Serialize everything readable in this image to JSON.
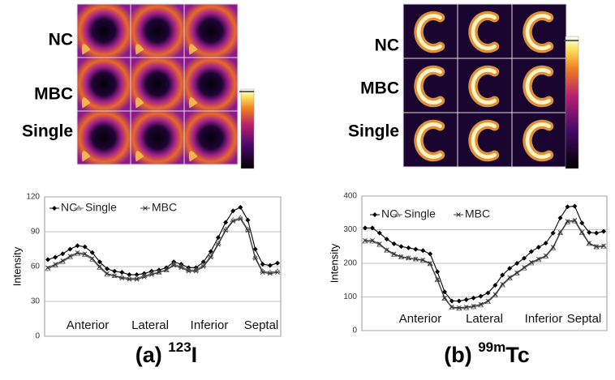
{
  "panels": [
    {
      "row_labels": [
        "NC",
        "MBC",
        "Single"
      ],
      "caption": {
        "prefix": "(a) ",
        "superscript": "123",
        "symbol": "I"
      }
    },
    {
      "row_labels": [
        "NC",
        "MBC",
        "Single"
      ],
      "caption": {
        "prefix": "(b) ",
        "superscript": "99m",
        "symbol": "Tc"
      }
    }
  ],
  "chart_data": [
    {
      "type": "line",
      "y_label": "Intensity",
      "ylim": [
        0,
        120
      ],
      "yticks": [
        0,
        30,
        60,
        90,
        120
      ],
      "grid": true,
      "annotations": [
        "Anterior",
        "Lateral",
        "Inferior",
        "Septal"
      ],
      "series": [
        {
          "name": "NC",
          "color": "#000000",
          "marker": "diamond",
          "values": [
            66,
            68,
            71,
            75,
            78,
            77,
            72,
            64,
            58,
            56,
            55,
            53,
            53,
            54,
            56,
            57,
            59,
            64,
            62,
            59,
            59,
            64,
            73,
            85,
            98,
            108,
            111,
            100,
            75,
            62,
            61,
            63
          ]
        },
        {
          "name": "Single",
          "color": "#666666",
          "marker": "triangle",
          "values": [
            58,
            61,
            64,
            68,
            71,
            70,
            66,
            59,
            53,
            52,
            51,
            50,
            50,
            52,
            54,
            55,
            57,
            62,
            60,
            57,
            57,
            61,
            69,
            80,
            92,
            100,
            102,
            92,
            68,
            56,
            55,
            56
          ]
        },
        {
          "name": "MBC",
          "color": "#333333",
          "marker": "cross",
          "values": [
            59,
            62,
            65,
            69,
            72,
            71,
            67,
            60,
            54,
            52,
            50,
            49,
            49,
            51,
            53,
            55,
            57,
            61,
            59,
            56,
            56,
            60,
            68,
            79,
            91,
            99,
            101,
            91,
            67,
            55,
            54,
            55
          ]
        }
      ]
    },
    {
      "type": "line",
      "y_label": "Intensity",
      "ylim": [
        0,
        400
      ],
      "yticks": [
        0,
        100,
        200,
        300,
        400
      ],
      "grid": true,
      "annotations": [
        "Anterior",
        "Lateral",
        "Inferior",
        "Septal"
      ],
      "series": [
        {
          "name": "NC",
          "color": "#000000",
          "marker": "diamond",
          "values": [
            305,
            305,
            290,
            272,
            258,
            250,
            246,
            242,
            238,
            228,
            175,
            115,
            88,
            88,
            92,
            97,
            102,
            112,
            135,
            165,
            185,
            200,
            215,
            235,
            248,
            260,
            290,
            335,
            368,
            370,
            320,
            292,
            290,
            295
          ]
        },
        {
          "name": "Single",
          "color": "#666666",
          "marker": "triangle",
          "values": [
            265,
            265,
            255,
            238,
            225,
            218,
            215,
            212,
            208,
            198,
            150,
            95,
            68,
            65,
            67,
            70,
            75,
            85,
            105,
            135,
            155,
            170,
            185,
            200,
            210,
            220,
            245,
            290,
            322,
            325,
            290,
            258,
            248,
            250
          ]
        },
        {
          "name": "MBC",
          "color": "#333333",
          "marker": "cross",
          "values": [
            268,
            268,
            258,
            240,
            228,
            220,
            216,
            213,
            210,
            200,
            152,
            97,
            70,
            68,
            70,
            73,
            78,
            88,
            108,
            138,
            158,
            172,
            188,
            203,
            213,
            223,
            248,
            292,
            325,
            328,
            293,
            260,
            250,
            252
          ]
        }
      ]
    }
  ]
}
